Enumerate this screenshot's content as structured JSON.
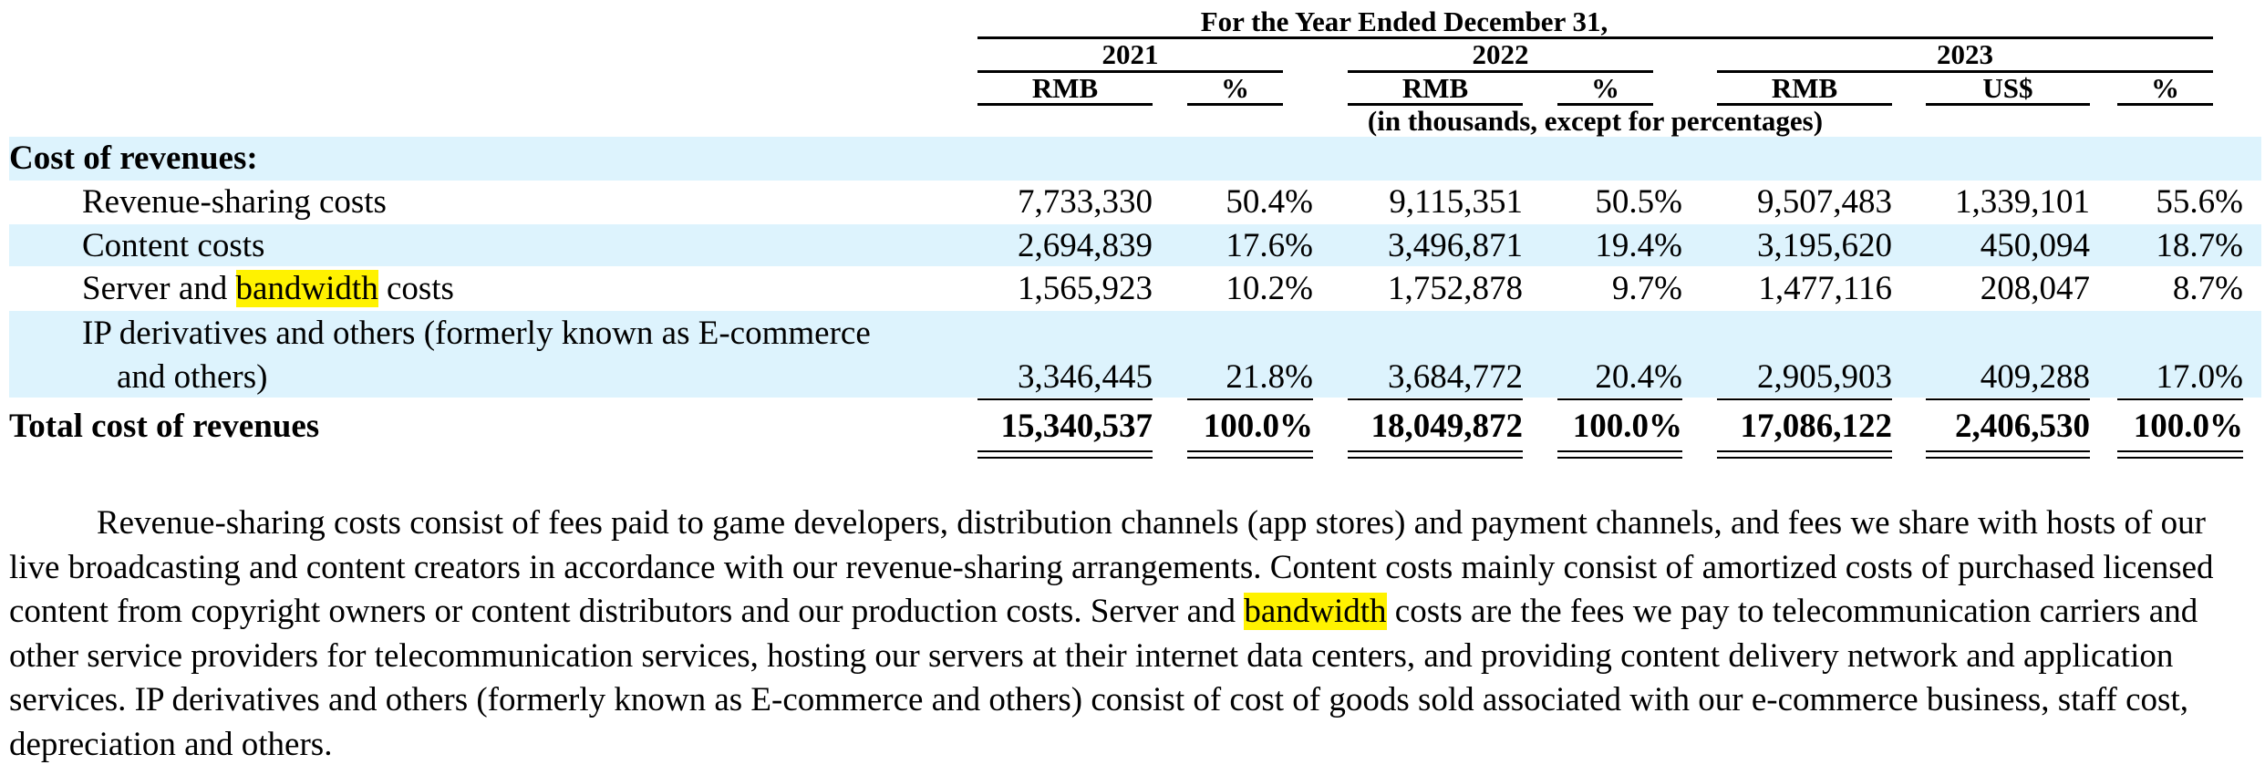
{
  "header": {
    "period_title": "For the Year Ended December 31,",
    "years": [
      "2021",
      "2022",
      "2023"
    ],
    "col_units": [
      "RMB",
      "%",
      "RMB",
      "%",
      "RMB",
      "US$",
      "%"
    ],
    "units_note": "(in thousands, except for percentages)"
  },
  "section_title": "Cost of revenues:",
  "rows": [
    {
      "label": "Revenue-sharing costs",
      "values": [
        "7,733,330",
        "50.4%",
        "9,115,351",
        "50.5%",
        "9,507,483",
        "1,339,101",
        "55.6%"
      ]
    },
    {
      "label": "Content costs",
      "values": [
        "2,694,839",
        "17.6%",
        "3,496,871",
        "19.4%",
        "3,195,620",
        "450,094",
        "18.7%"
      ]
    },
    {
      "label_before": "Server and ",
      "label_highlight": "bandwidth",
      "label_after": " costs",
      "values": [
        "1,565,923",
        "10.2%",
        "1,752,878",
        "9.7%",
        "1,477,116",
        "208,047",
        "8.7%"
      ]
    },
    {
      "label_line1": "IP derivatives and others (formerly known as E-commerce",
      "label_line2": "and others)",
      "values": [
        "3,346,445",
        "21.8%",
        "3,684,772",
        "20.4%",
        "2,905,903",
        "409,288",
        "17.0%"
      ]
    }
  ],
  "total": {
    "label": "Total cost of revenues",
    "values": [
      "15,340,537",
      "100.0%",
      "18,049,872",
      "100.0%",
      "17,086,122",
      "2,406,530",
      "100.0%"
    ]
  },
  "paragraph": {
    "part1": "Revenue-sharing costs consist of fees paid to game developers, distribution channels (app stores) and payment channels, and fees we share with hosts of our live broadcasting and content creators in accordance with our revenue-sharing arrangements. Content costs mainly consist of amortized costs of purchased licensed content from copyright owners or content distributors and our production costs. Server and ",
    "highlight": "bandwidth",
    "part2": " costs are the fees we pay to telecommunication carriers and other service providers for telecommunication services, hosting our servers at their internet data centers, and providing content delivery network and application services. IP derivatives and others (formerly known as E-commerce and others) consist of cost of goods sold associated with our e-commerce business, staff cost, depreciation and others."
  },
  "colors": {
    "row_band": "#ddf3fd",
    "highlight": "#fff200"
  }
}
